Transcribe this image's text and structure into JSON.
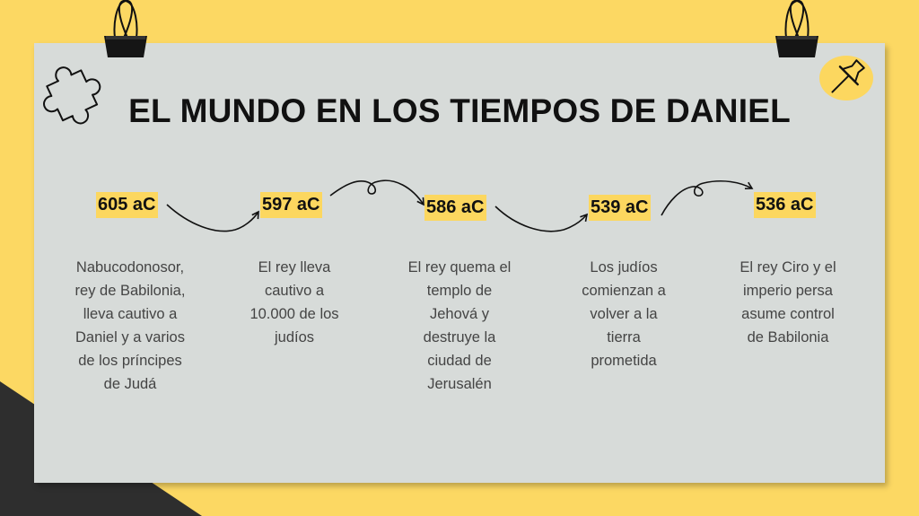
{
  "title": "EL MUNDO EN LOS TIEMPOS DE DANIEL",
  "colors": {
    "background": "#fcd863",
    "board": "#d7dbd9",
    "highlight": "#fcd75f",
    "dark_corner": "#2e2e2e"
  },
  "timeline": [
    {
      "year": "605 aC",
      "desc": [
        "Nabucodonosor,",
        "rey de Babilonia,",
        "lleva cautivo a",
        "Daniel y a varios",
        "de los príncipes",
        "de Judá"
      ]
    },
    {
      "year": "597 aC",
      "desc": [
        "El rey lleva",
        "cautivo a",
        "10.000 de los",
        "judíos"
      ]
    },
    {
      "year": "586 aC",
      "desc": [
        "El rey quema el",
        "templo de",
        "Jehová y",
        "destruye la",
        "ciudad de",
        "Jerusalén"
      ]
    },
    {
      "year": "539 aC",
      "desc": [
        "Los judíos",
        "comienzan a",
        "volver a la",
        "tierra",
        "prometida"
      ]
    },
    {
      "year": "536 aC",
      "desc": [
        "El rey Ciro y el",
        "imperio persa",
        "asume control",
        "de Babilonia"
      ]
    }
  ],
  "decorations": [
    "binder-clip-icon",
    "binder-clip-icon",
    "puzzle-piece-icon",
    "push-pin-icon"
  ]
}
